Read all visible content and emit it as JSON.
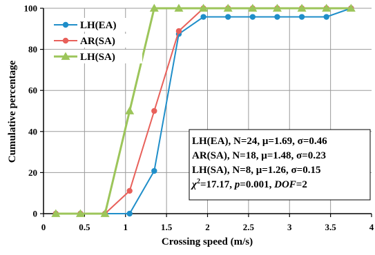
{
  "chart_data": {
    "type": "line",
    "title": "",
    "xlabel": "Crossing speed (m/s)",
    "ylabel": "Cumulative percentage",
    "xlim": [
      0,
      4
    ],
    "ylim": [
      0,
      100
    ],
    "x_ticks": [
      "0",
      "0.5",
      "1",
      "1.5",
      "2",
      "2.5",
      "3",
      "3.5",
      "4"
    ],
    "y_ticks": [
      "0",
      "20",
      "40",
      "60",
      "80",
      "100"
    ],
    "grid": true,
    "legend_position": "top-left",
    "x": [
      0.15,
      0.45,
      0.75,
      1.05,
      1.35,
      1.65,
      1.95,
      2.25,
      2.55,
      2.85,
      3.15,
      3.45,
      3.75
    ],
    "series": [
      {
        "name": "LH(EA)",
        "color": "#1f8ec9",
        "marker": "circle",
        "values": [
          0,
          0,
          0,
          0,
          20.8,
          87.5,
          95.8,
          95.8,
          95.8,
          95.8,
          95.8,
          95.8,
          100
        ]
      },
      {
        "name": "AR(SA)",
        "color": "#e8605a",
        "marker": "circle",
        "values": [
          0,
          0,
          0,
          11.1,
          50,
          88.9,
          100,
          100,
          100,
          100,
          100,
          100,
          100
        ]
      },
      {
        "name": "LH(SA)",
        "color": "#9cc55a",
        "marker": "triangle",
        "values": [
          0,
          0,
          0,
          50,
          100,
          100,
          100,
          100,
          100,
          100,
          100,
          100,
          100
        ]
      }
    ],
    "stats_box": {
      "lines": [
        "LH(EA), N=24, μ=1.69, σ=0.46",
        "AR(SA), N=18, μ=1.48, σ=0.23",
        "LH(SA), N=8, μ=1.26, σ=0.15"
      ],
      "chi_sq": "17.17",
      "p": "0.001",
      "dof": "2"
    }
  }
}
